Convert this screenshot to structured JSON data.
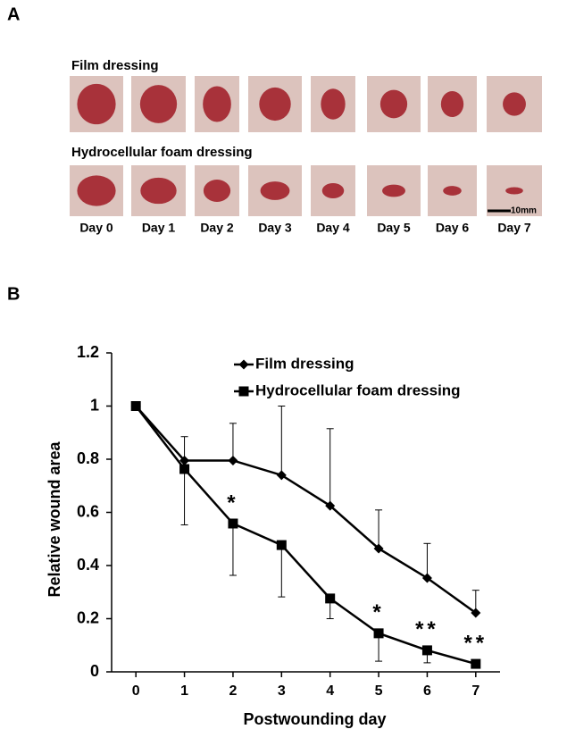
{
  "panel_a": {
    "label": "A",
    "rows": [
      "Film dressing",
      "Hydrocellular foam dressing"
    ],
    "days": [
      "Day 0",
      "Day 1",
      "Day 2",
      "Day 3",
      "Day 4",
      "Day 5",
      "Day 6",
      "Day 7"
    ],
    "scale_bar": "10mm"
  },
  "panel_b_label": "B",
  "chart_data": {
    "type": "line",
    "x_label": "Postwounding day",
    "y_label": "Relative wound area",
    "x": [
      0,
      1,
      2,
      3,
      4,
      5,
      6,
      7
    ],
    "series": [
      {
        "name": "Film dressing",
        "color": "#000000",
        "marker": "diamond",
        "error_direction": "up",
        "values": [
          1.0,
          0.795,
          0.795,
          0.74,
          0.625,
          0.464,
          0.353,
          0.222
        ],
        "errors": [
          0,
          0.09,
          0.14,
          0.26,
          0.29,
          0.145,
          0.13,
          0.085
        ]
      },
      {
        "name": "Hydrocellular foam dressing",
        "color": "#000000",
        "marker": "square",
        "error_direction": "down",
        "values": [
          1.0,
          0.763,
          0.558,
          0.477,
          0.276,
          0.145,
          0.081,
          0.03
        ],
        "errors": [
          0,
          0.21,
          0.195,
          0.195,
          0.076,
          0.105,
          0.047,
          0.01
        ]
      }
    ],
    "annotations": [
      {
        "text": "*",
        "x": 2
      },
      {
        "text": "*",
        "x": 5
      },
      {
        "text": "**",
        "x": 6
      },
      {
        "text": "**",
        "x": 7
      }
    ],
    "xlim": [
      -0.5,
      7.5
    ],
    "xticks": [
      0,
      1,
      2,
      3,
      4,
      5,
      6,
      7
    ],
    "ylim": [
      0,
      1.2
    ],
    "yticks": [
      0,
      0.2,
      0.4,
      0.6,
      0.8,
      1,
      1.2
    ],
    "grid": false,
    "legend": "upper center"
  }
}
